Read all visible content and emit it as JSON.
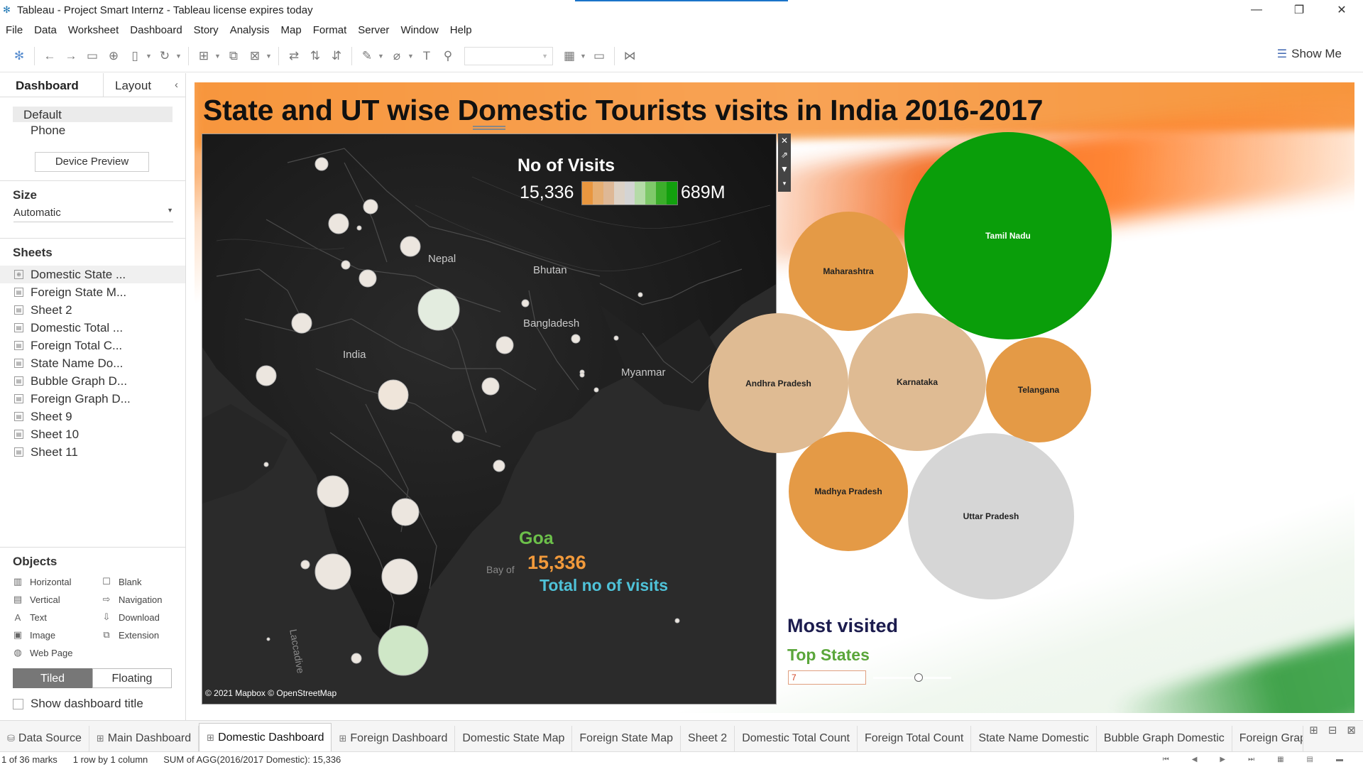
{
  "window": {
    "title": "Tableau - Project Smart Internz - Tableau license expires today"
  },
  "menu": [
    "File",
    "Data",
    "Worksheet",
    "Dashboard",
    "Story",
    "Analysis",
    "Map",
    "Format",
    "Server",
    "Window",
    "Help"
  ],
  "toolbar": {
    "show_me": "Show Me"
  },
  "sidebar": {
    "tab_dashboard": "Dashboard",
    "tab_layout": "Layout",
    "device_default": "Default",
    "device_phone": "Phone",
    "device_preview": "Device Preview",
    "size_heading": "Size",
    "size_value": "Automatic",
    "sheets_heading": "Sheets",
    "sheets": [
      "Domestic State ...",
      "Foreign State M...",
      "Sheet 2",
      "Domestic Total ...",
      "Foreign Total C...",
      "State Name Do...",
      "Bubble Graph D...",
      "Foreign Graph D...",
      "Sheet 9",
      "Sheet 10",
      "Sheet 11"
    ],
    "objects_heading": "Objects",
    "objects": [
      "Horizontal",
      "Blank",
      "Vertical",
      "Navigation",
      "Text",
      "Download",
      "Image",
      "Extension",
      "Web Page"
    ],
    "tiled": "Tiled",
    "floating": "Floating",
    "show_title": "Show dashboard title"
  },
  "dashboard": {
    "title": "State and UT wise Domestic Tourists visits in India 2016-2017",
    "map": {
      "legend_title": "No of Visits",
      "legend_min": "15,336",
      "legend_max": "689M",
      "legend_colors": [
        "#e8963f",
        "#e6ae72",
        "#deb896",
        "#ddd2c6",
        "#d4d4d4",
        "#b5dba8",
        "#7fc96a",
        "#3cae2b",
        "#12a00e"
      ],
      "labels": {
        "nepal": "Nepal",
        "bhutan": "Bhutan",
        "bangladesh": "Bangladesh",
        "india": "India",
        "myanmar": "Myanmar",
        "bay": "Bay of",
        "laccadive": "Laccadive"
      },
      "highlight_name": "Goa",
      "highlight_value": "15,336",
      "highlight_caption": "Total no of visits",
      "attribution": "© 2021 Mapbox © OpenStreetMap"
    },
    "bubbles": [
      {
        "state": "Tamil Nadu",
        "color": "#0a9e0a"
      },
      {
        "state": "Maharashtra",
        "color": "#e49a46"
      },
      {
        "state": "Andhra Pradesh",
        "color": "#dfbb93"
      },
      {
        "state": "Karnataka",
        "color": "#dfbb93"
      },
      {
        "state": "Telangana",
        "color": "#e49a46"
      },
      {
        "state": "Madhya Pradesh",
        "color": "#e49a46"
      },
      {
        "state": "Uttar Pradesh",
        "color": "#d6d6d6"
      }
    ],
    "most_visited": "Most visited",
    "top_states": "Top States",
    "top_value": "7"
  },
  "tabs": [
    "Data Source",
    "Main Dashboard",
    "Domestic Dashboard",
    "Foreign Dashboard",
    "Domestic State Map",
    "Foreign State Map",
    "Sheet 2",
    "Domestic Total Count",
    "Foreign Total Count",
    "State Name Domestic",
    "Bubble Graph Domestic",
    "Foreign Grap"
  ],
  "status": {
    "marks": "1 of 36 marks",
    "rows": "1 row by 1 column",
    "sum": "SUM of AGG(2016/2017 Domestic): 15,336"
  }
}
